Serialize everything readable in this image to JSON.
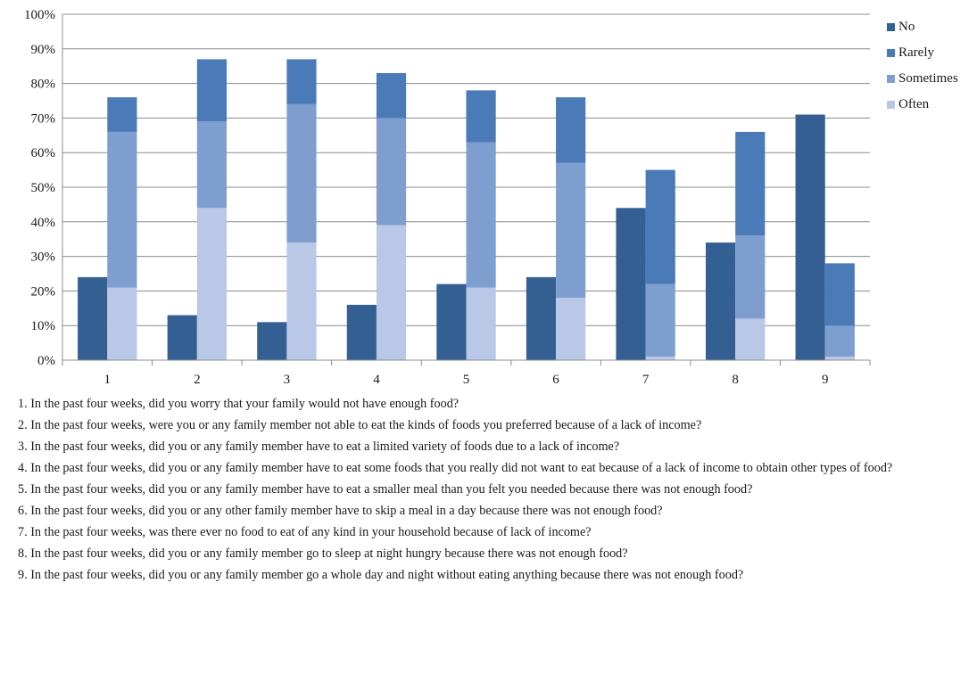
{
  "chart_data": {
    "type": "bar",
    "categories": [
      "1",
      "2",
      "3",
      "4",
      "5",
      "6",
      "7",
      "8",
      "9"
    ],
    "ylim": [
      0,
      100
    ],
    "ytick_labels": [
      "0%",
      "10%",
      "20%",
      "30%",
      "40%",
      "50%",
      "60%",
      "70%",
      "80%",
      "90%",
      "100%"
    ],
    "series": [
      {
        "name": "No",
        "color": "#345f93",
        "values": [
          24,
          13,
          11,
          16,
          22,
          24,
          44,
          34,
          71
        ]
      },
      {
        "name": "Rarely",
        "color": "#4a7ab8",
        "values": [
          10,
          18,
          13,
          13,
          15,
          19,
          33,
          30,
          18
        ]
      },
      {
        "name": "Sometimes",
        "color": "#7f9ed0",
        "values": [
          45,
          25,
          40,
          31,
          42,
          39,
          21,
          24,
          9
        ]
      },
      {
        "name": "Often",
        "color": "#b9c8e6",
        "values": [
          21,
          44,
          34,
          39,
          21,
          18,
          1,
          12,
          1
        ]
      }
    ],
    "legend_position": "right",
    "grid": true
  },
  "legend": [
    {
      "label": "No",
      "color": "#345f93"
    },
    {
      "label": "Rarely",
      "color": "#4a7ab8"
    },
    {
      "label": "Sometimes",
      "color": "#7f9ed0"
    },
    {
      "label": "Often",
      "color": "#b9c8e6"
    }
  ],
  "notes": [
    "1. In the past four weeks, did you worry that your family would not have enough food?",
    "2. In the past four weeks, were you or any family member not able to eat the kinds of foods you preferred because of a lack of income?",
    "3. In the past four weeks, did you or any family member have to eat a limited variety of foods due to a lack of income?",
    "4. In the past four weeks, did you or any family member have to eat some foods that you really did not want to eat because of a lack of income to obtain other types of food?",
    "5. In the past four weeks, did you or any family member have to eat a smaller meal than you felt you needed because there was not enough food?",
    "6. In the past four weeks, did you or any other family member have to skip a meal in a day because there was not enough food?",
    "7. In the past four weeks, was there ever no food to eat of any kind in your household because of lack of income?",
    "8. In the past four weeks, did you or any family member go to sleep at night hungry because there was not enough food?",
    "9. In the past four weeks, did you or any family member go a whole day and night without eating anything because there was not enough food?"
  ]
}
